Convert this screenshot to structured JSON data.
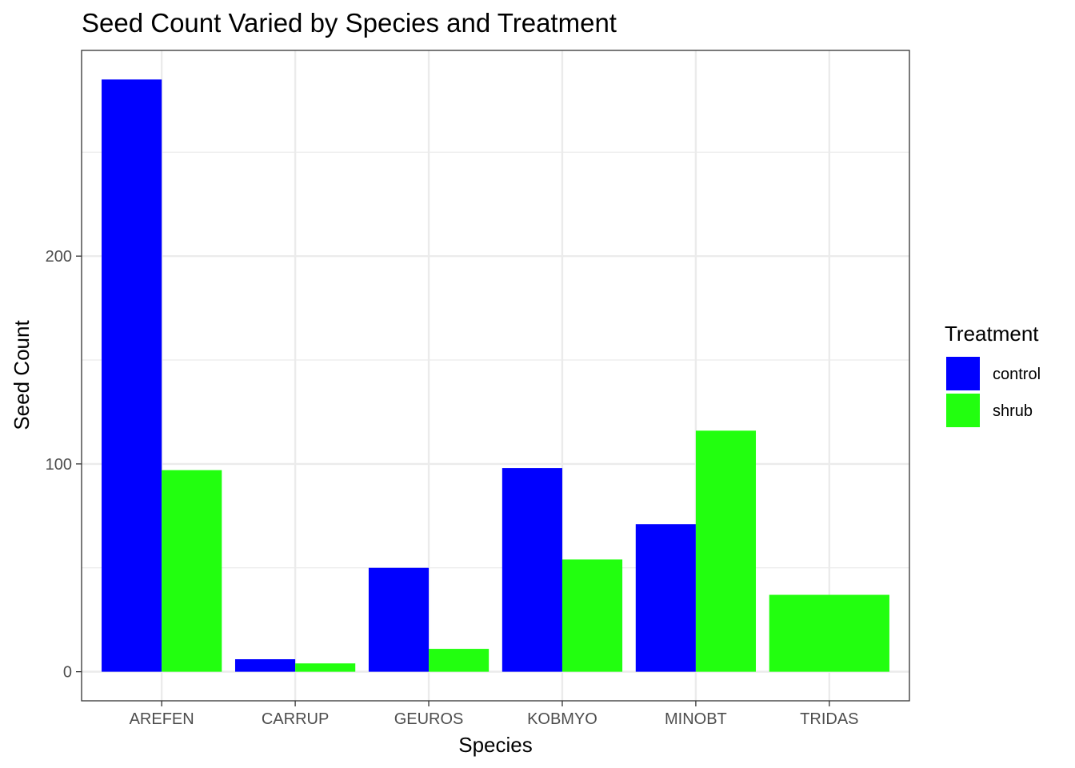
{
  "chart_data": {
    "type": "bar",
    "title": "Seed Count Varied by Species and Treatment",
    "xlabel": "Species",
    "ylabel": "Seed Count",
    "categories": [
      "AREFEN",
      "CARRUP",
      "GEUROS",
      "KOBMYO",
      "MINOBT",
      "TRIDAS"
    ],
    "yticks": [
      0,
      100,
      200
    ],
    "ylim": [
      -14,
      299
    ],
    "grid": true,
    "legend": {
      "title": "Treatment",
      "placement": "right"
    },
    "series": [
      {
        "name": "control",
        "color": "#0000ff",
        "values": [
          285,
          6,
          50,
          98,
          71,
          null
        ]
      },
      {
        "name": "shrub",
        "color": "#22ff0f",
        "values": [
          97,
          4,
          11,
          54,
          116,
          37
        ]
      }
    ]
  }
}
